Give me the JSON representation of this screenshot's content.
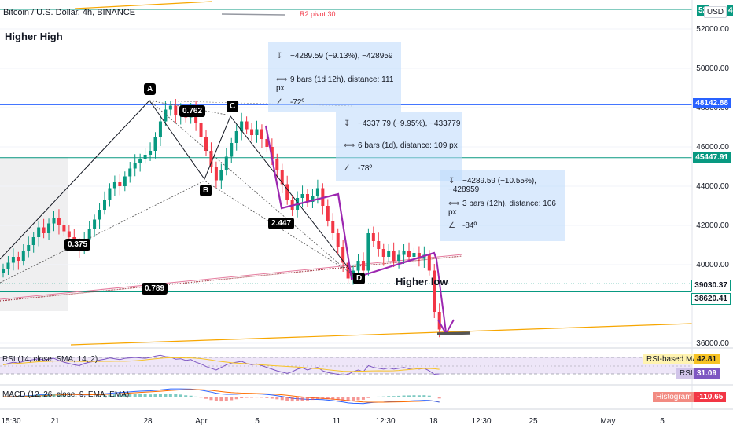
{
  "header": {
    "title": "Bitcoin / U.S. Dollar, 4h, BINANCE",
    "currency": "USD",
    "top_price_label": "52",
    "top_price_label_suffix": "4"
  },
  "annotations": {
    "higher_high": "Higher High",
    "higher_low": "Higher low",
    "r2_pivot": "R2 pivot 30",
    "points": {
      "A": "A",
      "B": "B",
      "C": "C",
      "D": "D"
    },
    "ratios": {
      "r0762": "0.762",
      "r0375": "0.375",
      "r2447": "2.447",
      "r0789": "0.789"
    }
  },
  "measurements": [
    {
      "price": "−4289.59 (−9.13%), −428959",
      "bars": "9 bars (1d 12h), distance: 111 px",
      "angle": "-72º"
    },
    {
      "price": "−4337.79 (−9.95%), −433779",
      "bars": "6 bars (1d), distance: 109 px",
      "angle": "-78º"
    },
    {
      "price": "−4289.59 (−10.55%), −428959",
      "bars": "3 bars (12h), distance: 106 px",
      "angle": "-84º"
    }
  ],
  "price_labels": [
    {
      "value": "48142.88",
      "color": "#2962ff",
      "text_color": "#ffffff"
    },
    {
      "value": "45447.91",
      "color": "#089981",
      "text_color": "#ffffff"
    },
    {
      "value": "39030.37",
      "color": "#ffffff",
      "text_color": "#131722"
    },
    {
      "value": "38620.41",
      "color": "#ffffff",
      "text_color": "#131722"
    }
  ],
  "indicators": {
    "rsi": {
      "label": "RSI (14, close, SMA, 14, 2)",
      "ma_label": "RSI-based MA",
      "ma_value": "42.81",
      "rsi_label": "RSI",
      "rsi_value": "31.09"
    },
    "macd": {
      "label": "MACD (12, 26, close, 9, EMA, EMA)",
      "hist_label": "Histogram",
      "hist_value": "-110.65"
    }
  },
  "chart_data": {
    "type": "candlestick",
    "y_ticks": [
      52000,
      50000,
      48000,
      46000,
      44000,
      42000,
      40000,
      36000
    ],
    "y_tick_labels": [
      "52000.00",
      "50000.00",
      "48000.00",
      "46000.00",
      "44000.00",
      "42000.00",
      "40000.00",
      "36000.00"
    ],
    "ylim": [
      35500,
      53200
    ],
    "x_ticks": [
      "15:30",
      "21",
      "28",
      "Apr",
      "5",
      "11",
      "12:30",
      "18",
      "12:30",
      "25",
      "May",
      "5"
    ],
    "horizontal_levels": [
      {
        "value": 48142.88,
        "color": "#2962ff"
      },
      {
        "value": 45447.91,
        "color": "#089981"
      },
      {
        "value": 39030.37,
        "color": "#089981"
      },
      {
        "value": 38620.41,
        "color": "#089981"
      },
      {
        "value": 52500,
        "color": "#089981"
      }
    ],
    "pattern_points": [
      {
        "name": "A",
        "y": 48200
      },
      {
        "name": "B",
        "y": 44300
      },
      {
        "name": "C",
        "y": 47300
      },
      {
        "name": "D",
        "y": 39300
      }
    ],
    "close": [
      39800,
      40100,
      40400,
      40200,
      40700,
      41000,
      41400,
      41900,
      41600,
      42100,
      42400,
      42000,
      41700,
      41400,
      41100,
      40800,
      41300,
      41800,
      42300,
      42800,
      43300,
      43900,
      44200,
      44000,
      44500,
      44900,
      45200,
      45400,
      45600,
      45800,
      46500,
      47300,
      47900,
      48100,
      47600,
      47800,
      47500,
      47900,
      47200,
      46500,
      45800,
      45000,
      44300,
      44800,
      45500,
      46200,
      46800,
      47300,
      46900,
      46600,
      46900,
      46400,
      46000,
      45400,
      44800,
      44100,
      43300,
      42800,
      43400,
      43600,
      43200,
      43500,
      43900,
      43000,
      42200,
      41600,
      40900,
      40100,
      39300,
      39700,
      40200,
      39700,
      41600,
      41200,
      40800,
      40400,
      40700,
      40200,
      40500,
      40700,
      40400,
      40600,
      40300,
      40500,
      39700,
      37600,
      36700
    ],
    "rsi": [
      52,
      55,
      58,
      56,
      60,
      62,
      64,
      66,
      63,
      65,
      67,
      62,
      58,
      55,
      52,
      50,
      55,
      58,
      60,
      63,
      65,
      68,
      66,
      64,
      67,
      68,
      69,
      68,
      67,
      69,
      72,
      74,
      71,
      70,
      65,
      66,
      62,
      64,
      58,
      54,
      48,
      44,
      40,
      46,
      52,
      56,
      58,
      60,
      55,
      52,
      54,
      50,
      46,
      42,
      38,
      35,
      32,
      36,
      42,
      45,
      40,
      44,
      46,
      38,
      34,
      32,
      30,
      28,
      30,
      36,
      40,
      36,
      50,
      46,
      44,
      42,
      45,
      42,
      44,
      46,
      43,
      45,
      42,
      44,
      38,
      30,
      31
    ],
    "rsi_ma": 42.81,
    "rsi_value": 31.09,
    "macd_histogram": -110.65
  }
}
